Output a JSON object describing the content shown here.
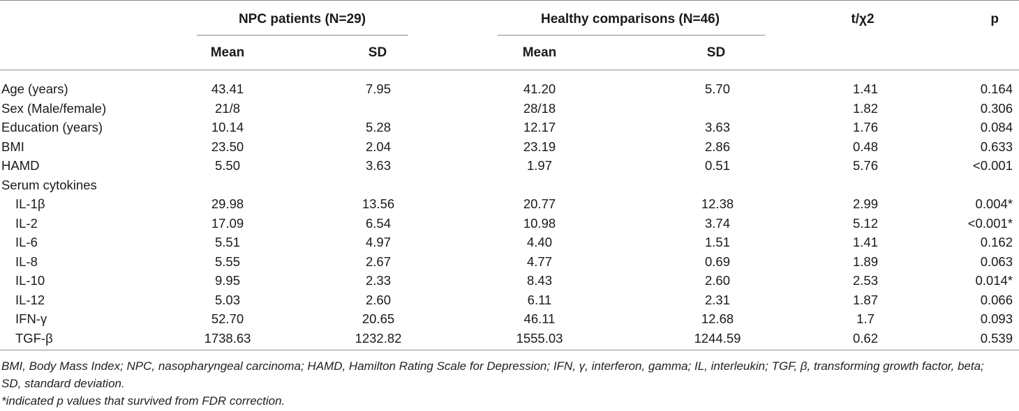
{
  "header": {
    "npc_group": "NPC patients (N=29)",
    "healthy_group": "Healthy comparisons (N=46)",
    "stat_col": "t/χ2",
    "p_col": "p",
    "npc_mean": "Mean",
    "npc_sd": "SD",
    "hc_mean": "Mean",
    "hc_sd": "SD"
  },
  "rows": [
    {
      "label": "Age (years)",
      "npc_mean": "43.41",
      "npc_sd": "7.95",
      "hc_mean": "41.20",
      "hc_sd": "5.70",
      "t": "1.41",
      "p": "0.164"
    },
    {
      "label": "Sex (Male/female)",
      "npc_mean": "21/8",
      "npc_sd": "",
      "hc_mean": "28/18",
      "hc_sd": "",
      "t": "1.82",
      "p": "0.306"
    },
    {
      "label": "Education (years)",
      "npc_mean": "10.14",
      "npc_sd": "5.28",
      "hc_mean": "12.17",
      "hc_sd": "3.63",
      "t": "1.76",
      "p": "0.084"
    },
    {
      "label": "BMI",
      "npc_mean": "23.50",
      "npc_sd": "2.04",
      "hc_mean": "23.19",
      "hc_sd": "2.86",
      "t": "0.48",
      "p": "0.633"
    },
    {
      "label": "HAMD",
      "npc_mean": "5.50",
      "npc_sd": "3.63",
      "hc_mean": "1.97",
      "hc_sd": "0.51",
      "t": "5.76",
      "p": "<0.001"
    },
    {
      "label": "Serum cytokines",
      "npc_mean": "",
      "npc_sd": "",
      "hc_mean": "",
      "hc_sd": "",
      "t": "",
      "p": ""
    },
    {
      "label": "IL-1β",
      "npc_mean": "29.98",
      "npc_sd": "13.56",
      "hc_mean": "20.77",
      "hc_sd": "12.38",
      "t": "2.99",
      "p": "0.004*"
    },
    {
      "label": "IL-2",
      "npc_mean": "17.09",
      "npc_sd": "6.54",
      "hc_mean": "10.98",
      "hc_sd": "3.74",
      "t": "5.12",
      "p": "<0.001*"
    },
    {
      "label": "IL-6",
      "npc_mean": "5.51",
      "npc_sd": "4.97",
      "hc_mean": "4.40",
      "hc_sd": "1.51",
      "t": "1.41",
      "p": "0.162"
    },
    {
      "label": "IL-8",
      "npc_mean": "5.55",
      "npc_sd": "2.67",
      "hc_mean": "4.77",
      "hc_sd": "0.69",
      "t": "1.89",
      "p": "0.063"
    },
    {
      "label": "IL-10",
      "npc_mean": "9.95",
      "npc_sd": "2.33",
      "hc_mean": "8.43",
      "hc_sd": "2.60",
      "t": "2.53",
      "p": "0.014*"
    },
    {
      "label": "IL-12",
      "npc_mean": "5.03",
      "npc_sd": "2.60",
      "hc_mean": "6.11",
      "hc_sd": "2.31",
      "t": "1.87",
      "p": "0.066"
    },
    {
      "label": "IFN-γ",
      "npc_mean": "52.70",
      "npc_sd": "20.65",
      "hc_mean": "46.11",
      "hc_sd": "12.68",
      "t": "1.7",
      "p": "0.093"
    },
    {
      "label": "TGF-β",
      "npc_mean": "1738.63",
      "npc_sd": "1232.82",
      "hc_mean": "1555.03",
      "hc_sd": "1244.59",
      "t": "0.62",
      "p": "0.539"
    }
  ],
  "footnotes": {
    "abbrev_line1": "BMI, Body Mass Index; NPC, nasopharyngeal carcinoma; HAMD, Hamilton Rating Scale for Depression; IFN, γ, interferon, gamma; IL, interleukin; TGF, β, transforming growth factor, beta;",
    "abbrev_line2": "SD, standard deviation.",
    "fdr_note": "*indicated p values that survived from FDR correction."
  }
}
